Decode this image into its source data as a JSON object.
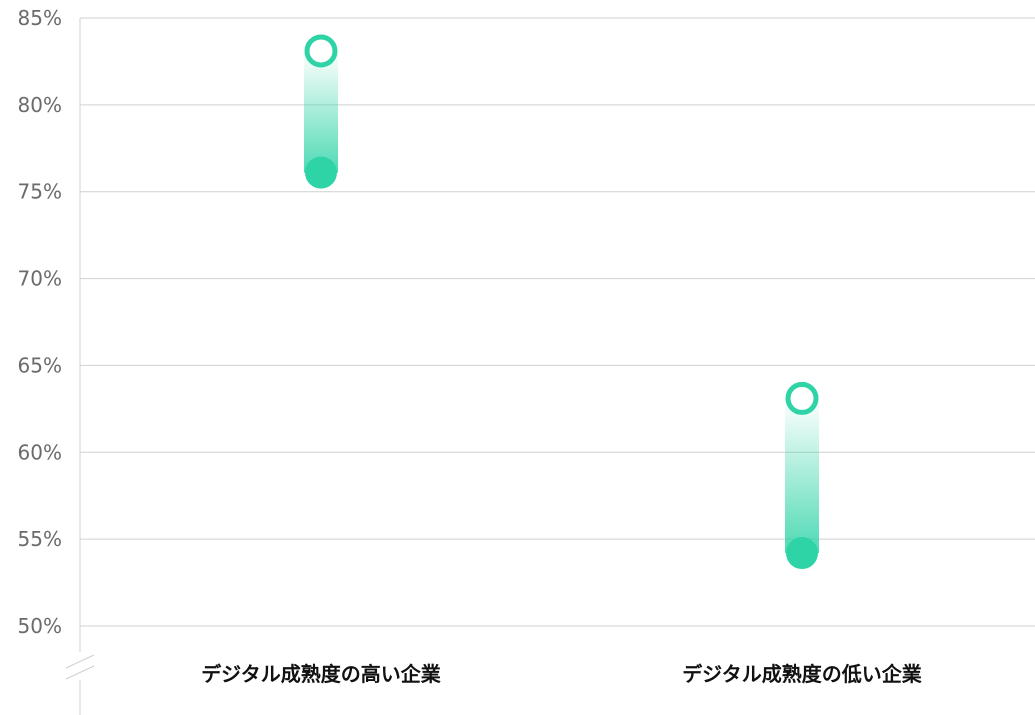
{
  "chart_data": {
    "type": "range-dot",
    "title": "",
    "xlabel": "",
    "ylabel": "",
    "ylim": [
      50,
      85
    ],
    "y_ticks": [
      85,
      80,
      75,
      70,
      65,
      60,
      55,
      50
    ],
    "y_tick_labels": [
      "85%",
      "80%",
      "75%",
      "70%",
      "65%",
      "60%",
      "55%",
      "50%"
    ],
    "y_axis_break": true,
    "grid": true,
    "categories": [
      "デジタル成熟度の高い企業",
      "デジタル成熟度の低い企業"
    ],
    "ranges": [
      {
        "low": 76.1,
        "high": 83.1
      },
      {
        "low": 54.2,
        "high": 63.1
      }
    ],
    "colors": {
      "accent": "#2ed3a6",
      "grid": "#d0d0d0",
      "tick_label": "#6b6b6b",
      "category_label": "#111111"
    }
  }
}
